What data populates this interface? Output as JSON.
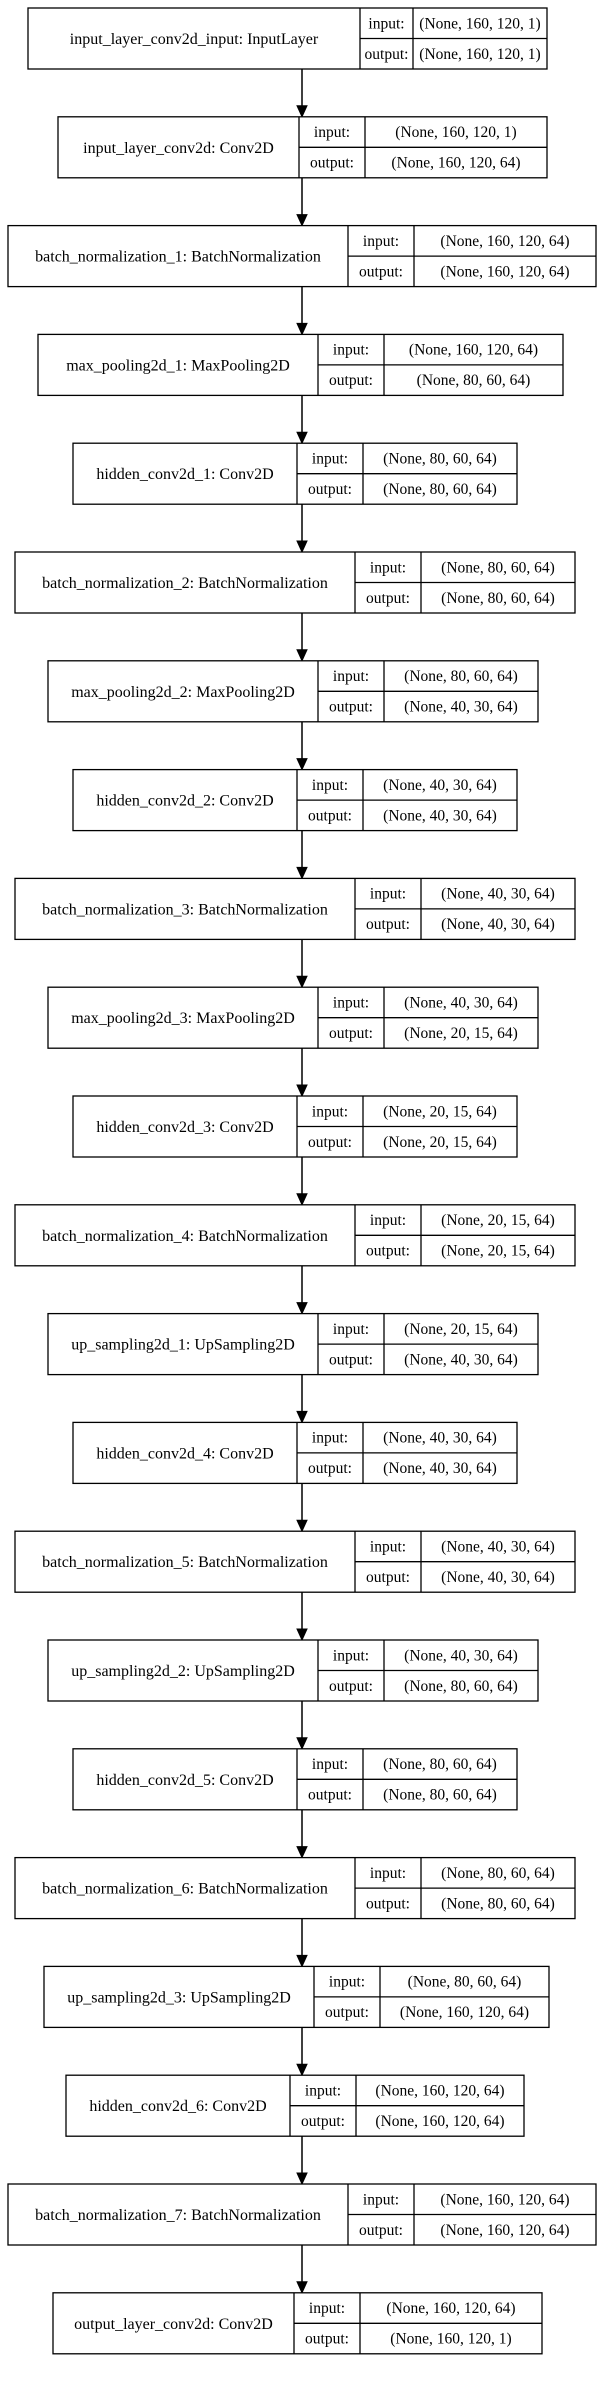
{
  "diagram": {
    "io_labels": {
      "input": "input:",
      "output": "output:"
    },
    "layers": [
      {
        "name": "input_layer_conv2d_input: InputLayer",
        "input": "(None, 160, 120, 1)",
        "output": "(None, 160, 120, 1)"
      },
      {
        "name": "input_layer_conv2d: Conv2D",
        "input": "(None, 160, 120, 1)",
        "output": "(None, 160, 120, 64)"
      },
      {
        "name": "batch_normalization_1: BatchNormalization",
        "input": "(None, 160, 120, 64)",
        "output": "(None, 160, 120, 64)"
      },
      {
        "name": "max_pooling2d_1: MaxPooling2D",
        "input": "(None, 160, 120, 64)",
        "output": "(None, 80, 60, 64)"
      },
      {
        "name": "hidden_conv2d_1: Conv2D",
        "input": "(None, 80, 60, 64)",
        "output": "(None, 80, 60, 64)"
      },
      {
        "name": "batch_normalization_2: BatchNormalization",
        "input": "(None, 80, 60, 64)",
        "output": "(None, 80, 60, 64)"
      },
      {
        "name": "max_pooling2d_2: MaxPooling2D",
        "input": "(None, 80, 60, 64)",
        "output": "(None, 40, 30, 64)"
      },
      {
        "name": "hidden_conv2d_2: Conv2D",
        "input": "(None, 40, 30, 64)",
        "output": "(None, 40, 30, 64)"
      },
      {
        "name": "batch_normalization_3: BatchNormalization",
        "input": "(None, 40, 30, 64)",
        "output": "(None, 40, 30, 64)"
      },
      {
        "name": "max_pooling2d_3: MaxPooling2D",
        "input": "(None, 40, 30, 64)",
        "output": "(None, 20, 15, 64)"
      },
      {
        "name": "hidden_conv2d_3: Conv2D",
        "input": "(None, 20, 15, 64)",
        "output": "(None, 20, 15, 64)"
      },
      {
        "name": "batch_normalization_4: BatchNormalization",
        "input": "(None, 20, 15, 64)",
        "output": "(None, 20, 15, 64)"
      },
      {
        "name": "up_sampling2d_1: UpSampling2D",
        "input": "(None, 20, 15, 64)",
        "output": "(None, 40, 30, 64)"
      },
      {
        "name": "hidden_conv2d_4: Conv2D",
        "input": "(None, 40, 30, 64)",
        "output": "(None, 40, 30, 64)"
      },
      {
        "name": "batch_normalization_5: BatchNormalization",
        "input": "(None, 40, 30, 64)",
        "output": "(None, 40, 30, 64)"
      },
      {
        "name": "up_sampling2d_2: UpSampling2D",
        "input": "(None, 40, 30, 64)",
        "output": "(None, 80, 60, 64)"
      },
      {
        "name": "hidden_conv2d_5: Conv2D",
        "input": "(None, 80, 60, 64)",
        "output": "(None, 80, 60, 64)"
      },
      {
        "name": "batch_normalization_6: BatchNormalization",
        "input": "(None, 80, 60, 64)",
        "output": "(None, 80, 60, 64)"
      },
      {
        "name": "up_sampling2d_3: UpSampling2D",
        "input": "(None, 80, 60, 64)",
        "output": "(None, 160, 120, 64)"
      },
      {
        "name": "hidden_conv2d_6: Conv2D",
        "input": "(None, 160, 120, 64)",
        "output": "(None, 160, 120, 64)"
      },
      {
        "name": "batch_normalization_7: BatchNormalization",
        "input": "(None, 160, 120, 64)",
        "output": "(None, 160, 120, 64)"
      },
      {
        "name": "output_layer_conv2d: Conv2D",
        "input": "(None, 160, 120, 64)",
        "output": "(None, 160, 120, 1)"
      }
    ]
  }
}
